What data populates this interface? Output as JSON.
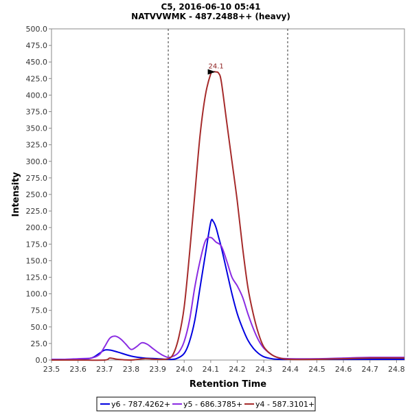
{
  "chart_data": {
    "type": "line",
    "title": "C5, 2016-06-10 05:41",
    "subtitle": "NATVVWMK - 487.2488++ (heavy)",
    "xlabel": "Retention Time",
    "ylabel": "Intensity",
    "xlim": [
      23.5,
      24.83
    ],
    "ylim": [
      0,
      500
    ],
    "x_ticks": [
      "23.5",
      "23.6",
      "23.7",
      "23.8",
      "23.9",
      "24.0",
      "24.1",
      "24.2",
      "24.3",
      "24.4",
      "24.5",
      "24.6",
      "24.7",
      "24.8"
    ],
    "y_ticks": [
      "0.0",
      "25.0",
      "50.0",
      "75.0",
      "100.0",
      "125.0",
      "150.0",
      "175.0",
      "200.0",
      "225.0",
      "250.0",
      "275.0",
      "300.0",
      "325.0",
      "350.0",
      "375.0",
      "400.0",
      "425.0",
      "450.0",
      "475.0",
      "500.0"
    ],
    "integration_boundaries": [
      23.94,
      24.39
    ],
    "peak_annotation": {
      "label": "24.1",
      "x": 24.12,
      "y": 435,
      "color": "#8b1a1a"
    },
    "legend_position": "bottom-center",
    "series": [
      {
        "name": "y6 - 787.4262+",
        "color": "#0000e0",
        "x": [
          23.5,
          23.55,
          23.6,
          23.65,
          23.68,
          23.7,
          23.72,
          23.75,
          23.8,
          23.85,
          23.9,
          23.94,
          23.97,
          24.0,
          24.02,
          24.04,
          24.06,
          24.08,
          24.1,
          24.11,
          24.12,
          24.13,
          24.14,
          24.16,
          24.18,
          24.2,
          24.22,
          24.24,
          24.26,
          24.28,
          24.3,
          24.33,
          24.36,
          24.4,
          24.5,
          24.6,
          24.7,
          24.83
        ],
        "values": [
          1,
          1,
          1,
          3,
          10,
          15,
          15,
          12,
          6,
          3,
          2,
          1,
          2,
          10,
          28,
          60,
          110,
          160,
          208,
          209,
          200,
          185,
          170,
          135,
          100,
          70,
          48,
          30,
          18,
          10,
          5,
          2,
          1,
          1,
          1,
          1,
          1,
          1
        ]
      },
      {
        "name": "y5 - 686.3785+",
        "color": "#8a2be2",
        "x": [
          23.5,
          23.55,
          23.6,
          23.65,
          23.68,
          23.7,
          23.72,
          23.74,
          23.76,
          23.78,
          23.8,
          23.82,
          23.84,
          23.86,
          23.88,
          23.9,
          23.92,
          23.94,
          23.96,
          23.98,
          24.0,
          24.02,
          24.04,
          24.06,
          24.08,
          24.1,
          24.12,
          24.14,
          24.16,
          24.18,
          24.2,
          24.22,
          24.24,
          24.26,
          24.28,
          24.3,
          24.33,
          24.36,
          24.4,
          24.5,
          24.6,
          24.7,
          24.83
        ],
        "values": [
          1,
          1,
          2,
          3,
          8,
          20,
          33,
          36,
          32,
          24,
          16,
          20,
          26,
          24,
          18,
          12,
          7,
          4,
          6,
          12,
          28,
          60,
          110,
          150,
          180,
          185,
          178,
          172,
          150,
          125,
          112,
          95,
          70,
          48,
          30,
          18,
          8,
          3,
          2,
          2,
          3,
          4,
          4
        ]
      },
      {
        "name": "y4 - 587.3101+",
        "color": "#a52a2a",
        "x": [
          23.5,
          23.6,
          23.7,
          23.72,
          23.75,
          23.8,
          23.85,
          23.9,
          23.94,
          23.96,
          23.98,
          24.0,
          24.02,
          24.04,
          24.06,
          24.08,
          24.1,
          24.11,
          24.12,
          24.13,
          24.14,
          24.16,
          24.18,
          24.2,
          24.22,
          24.24,
          24.26,
          24.28,
          24.3,
          24.33,
          24.36,
          24.4,
          24.5,
          24.6,
          24.7,
          24.83
        ],
        "values": [
          0,
          0,
          0,
          3,
          1,
          0,
          2,
          1,
          2,
          10,
          35,
          80,
          160,
          250,
          340,
          400,
          432,
          435,
          435,
          433,
          420,
          360,
          300,
          240,
          170,
          110,
          70,
          40,
          20,
          8,
          3,
          1,
          1,
          2,
          3,
          3
        ]
      }
    ]
  }
}
